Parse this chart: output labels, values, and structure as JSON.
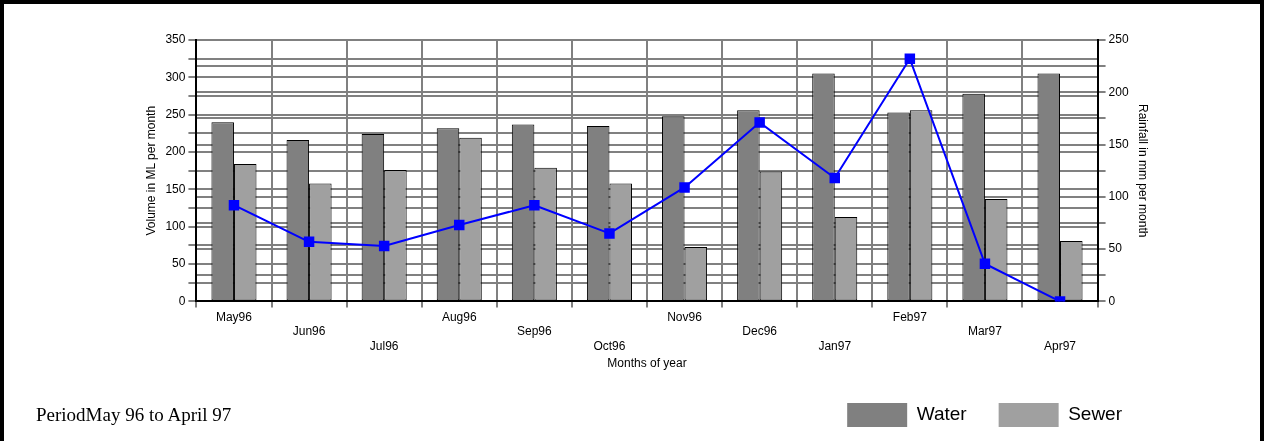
{
  "chart_data": {
    "type": "bar",
    "xlabel": "Months of year",
    "ylabel": "Volume in ML per month",
    "y2label": "Rainfall in mm per month",
    "categories": [
      "May96",
      "Jun96",
      "Jul96",
      "Aug96",
      "Sep96",
      "Oct96",
      "Nov96",
      "Dec96",
      "Jan97",
      "Feb97",
      "Mar97",
      "Apr97"
    ],
    "series": [
      {
        "name": "Water",
        "color": "#808080",
        "values": [
          240,
          216,
          224,
          232,
          237,
          235,
          248,
          256,
          305,
          253,
          278,
          305
        ]
      },
      {
        "name": "Sewer",
        "color": "#a0a0a0",
        "values": [
          184,
          158,
          176,
          219,
          179,
          158,
          73,
          174,
          113,
          256,
          137,
          81
        ]
      },
      {
        "type": "line",
        "axis": "y2",
        "color": "#0000ff",
        "marker": "square",
        "values": [
          92,
          57,
          53,
          73,
          92,
          65,
          109,
          171,
          118,
          232,
          36,
          0
        ]
      }
    ],
    "ylim": [
      0,
      350
    ],
    "yticks": [
      0,
      {
        "value": 25,
        "label": null
      },
      50,
      {
        "value": 75,
        "label": null
      },
      100,
      {
        "value": 125,
        "label": null
      },
      150,
      {
        "value": 175,
        "label": null
      },
      200,
      {
        "value": 225,
        "label": null
      },
      250,
      {
        "value": 275,
        "label": null
      },
      300,
      {
        "value": 325,
        "label": null
      },
      350
    ],
    "y2lim": [
      0,
      250
    ],
    "y2ticks": [
      0,
      {
        "value": 25,
        "label": null
      },
      50,
      {
        "value": 75,
        "label": null
      },
      100,
      {
        "value": 125,
        "label": null
      },
      150,
      {
        "value": 175,
        "label": null
      },
      200,
      {
        "value": 225,
        "label": null
      },
      250
    ],
    "grid": true,
    "legend": "bottom right",
    "annotations": [
      "PeriodMay 96 to April 97"
    ]
  }
}
